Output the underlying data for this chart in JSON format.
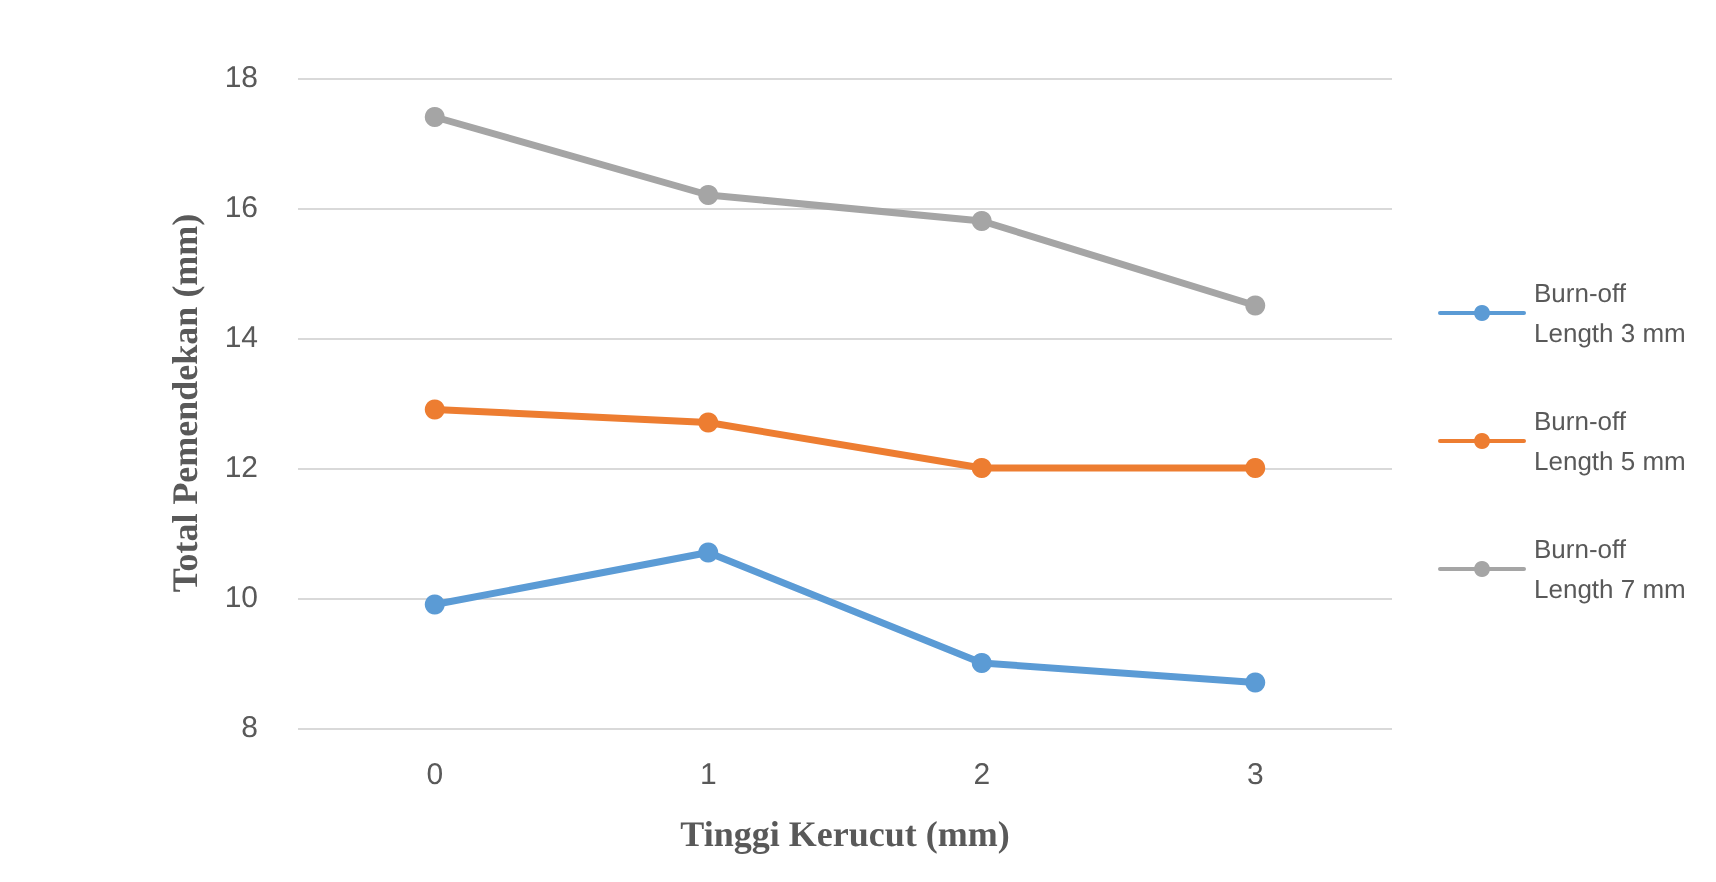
{
  "chart_data": {
    "type": "line",
    "xlabel": "Tinggi Kerucut (mm)",
    "ylabel": "Total Pemendekan (mm)",
    "categories": [
      "0",
      "1",
      "2",
      "3"
    ],
    "series": [
      {
        "name": "Burn-off Length 3 mm",
        "color": "#5b9bd5",
        "values": [
          9.9,
          10.7,
          9.0,
          8.7
        ]
      },
      {
        "name": "Burn-off Length 5 mm",
        "color": "#ed7d31",
        "values": [
          12.9,
          12.7,
          12.0,
          12.0
        ]
      },
      {
        "name": "Burn-off Length 7 mm",
        "color": "#a5a5a5",
        "values": [
          17.4,
          16.2,
          15.8,
          14.5
        ]
      }
    ],
    "ylim": [
      8,
      18
    ],
    "yticks": [
      8,
      10,
      12,
      14,
      16,
      18
    ],
    "grid": "y",
    "legend": "right",
    "marker": "circle",
    "line_style": "solid"
  }
}
